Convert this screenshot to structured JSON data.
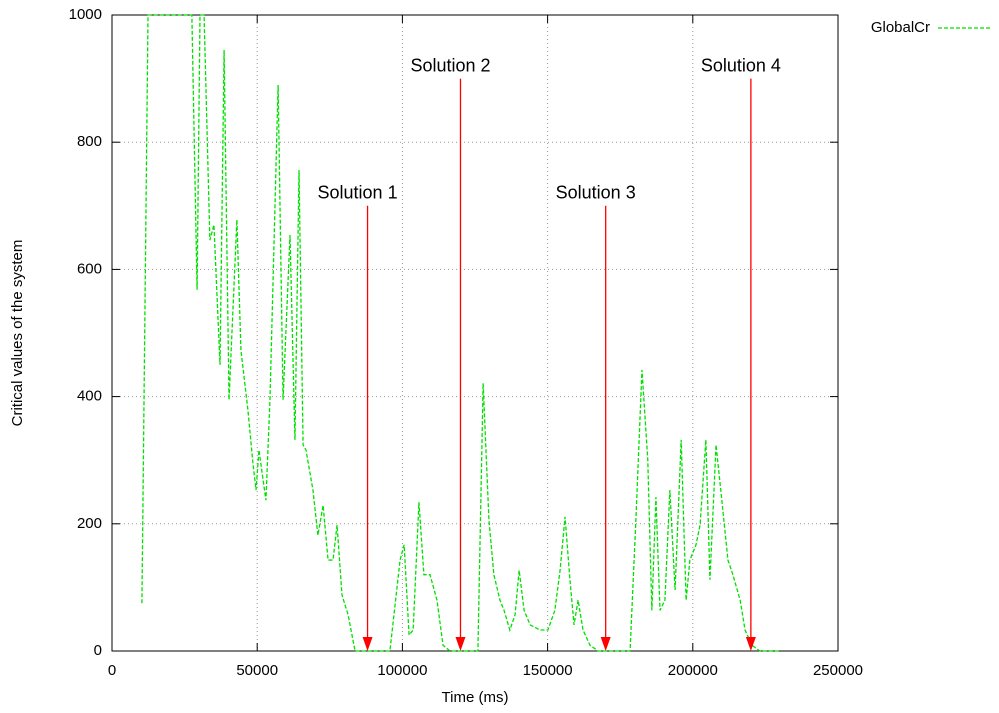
{
  "chart_data": {
    "type": "line",
    "xlabel": "Time (ms)",
    "ylabel": "Critical values of the system",
    "xlim": [
      0,
      250000
    ],
    "ylim": [
      0,
      1000
    ],
    "xticks": [
      0,
      50000,
      100000,
      150000,
      200000,
      250000
    ],
    "yticks": [
      0,
      200,
      400,
      600,
      800,
      1000
    ],
    "grid": true,
    "legend": "outside-top-right",
    "x": [
      10300,
      12400,
      27500,
      29300,
      30300,
      31700,
      33700,
      35100,
      37200,
      38600,
      40300,
      43000,
      44400,
      46800,
      48600,
      49600,
      50600,
      53000,
      54400,
      57200,
      58900,
      61300,
      63000,
      64400,
      65800,
      66800,
      69200,
      70900,
      72700,
      74400,
      76100,
      77500,
      79200,
      81300,
      83700,
      95700,
      99200,
      100600,
      102300,
      103700,
      105700,
      107400,
      109500,
      111900,
      114000,
      116400,
      126000,
      127800,
      129800,
      131500,
      133600,
      135000,
      137000,
      138800,
      140200,
      141900,
      144000,
      147400,
      150100,
      152500,
      154300,
      156000,
      157700,
      159100,
      160500,
      162200,
      164600,
      167400,
      178400,
      180400,
      182500,
      184500,
      185900,
      187300,
      188700,
      190400,
      192100,
      193900,
      196000,
      197700,
      199000,
      201100,
      202500,
      204500,
      205900,
      208000,
      210000,
      212100,
      213800,
      216300,
      218000,
      220400,
      223100,
      230000
    ],
    "series": [
      {
        "name": "GlobalCr",
        "color": "#00e000",
        "values": [
          75,
          1000,
          1000,
          568,
          1000,
          1000,
          646,
          670,
          450,
          945,
          395,
          678,
          473,
          379,
          292,
          253,
          316,
          237,
          395,
          890,
          395,
          654,
          332,
          756,
          324,
          316,
          253,
          182,
          229,
          143,
          143,
          198,
          88,
          57,
          0,
          0,
          143,
          167,
          25,
          33,
          234,
          120,
          120,
          80,
          9,
          0,
          0,
          421,
          206,
          120,
          80,
          64,
          33,
          57,
          127,
          64,
          41,
          33,
          33,
          64,
          127,
          211,
          112,
          41,
          80,
          33,
          9,
          0,
          0,
          206,
          442,
          300,
          64,
          242,
          64,
          80,
          253,
          96,
          332,
          80,
          143,
          167,
          198,
          332,
          112,
          324,
          237,
          143,
          120,
          80,
          33,
          9,
          0,
          0
        ]
      }
    ],
    "annotations": [
      {
        "text": "Solution 1",
        "x": 88000,
        "y": 700,
        "y_end": 0,
        "color": "#ff0000"
      },
      {
        "text": "Solution 2",
        "x": 120000,
        "y": 900,
        "y_end": 0,
        "color": "#ff0000"
      },
      {
        "text": "Solution 3",
        "x": 170000,
        "y": 700,
        "y_end": 0,
        "color": "#ff0000"
      },
      {
        "text": "Solution 4",
        "x": 220000,
        "y": 900,
        "y_end": 0,
        "color": "#ff0000"
      }
    ]
  }
}
